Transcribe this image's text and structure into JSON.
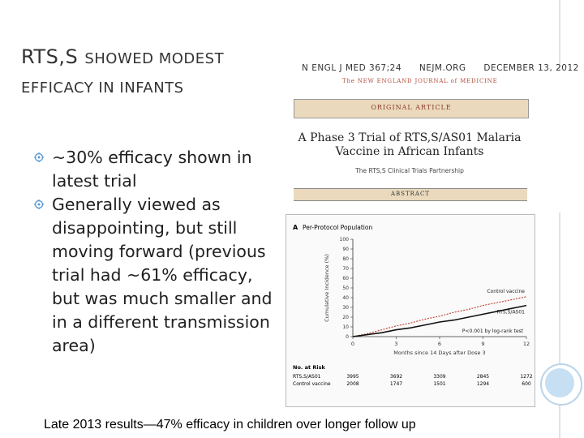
{
  "slide": {
    "title_line1_first": "RTS,S",
    "title_line1_rest": "SHOWED MODEST",
    "title_line2": "EFFICACY IN INFANTS",
    "bullets": [
      "~30% efficacy shown in latest trial",
      "Generally viewed as disappointing, but still moving forward (previous trial had ~61% efficacy, but was much smaller and in a different transmission area)"
    ],
    "caption": "Late 2013 results—47% efficacy in children over longer follow up"
  },
  "article": {
    "journal_ref": "N ENGL J MED 367;24",
    "site": "NEJM.ORG",
    "date": "DECEMBER 13, 2012",
    "journal_name": "The NEW ENGLAND JOURNAL of MEDICINE",
    "section": "ORIGINAL ARTICLE",
    "title": "A Phase 3 Trial of RTS,S/AS01 Malaria Vaccine in African Infants",
    "authors": "The RTS,S Clinical Trials Partnership",
    "abstract_label": "ABSTRACT"
  },
  "colors": {
    "control_line": "#c0392b",
    "vaccine_line": "#111111",
    "bullet_icon": "#5b9bd5"
  },
  "chart_data": {
    "type": "line",
    "panel_label": "A",
    "title": "Per-Protocol Population",
    "xlabel": "Months since 14 Days after Dose 3",
    "ylabel": "Cumulative Incidence (%)",
    "xlim": [
      0,
      12
    ],
    "ylim": [
      0,
      100
    ],
    "x_ticks": [
      0,
      3,
      6,
      9,
      12
    ],
    "y_ticks": [
      0,
      10,
      20,
      30,
      40,
      50,
      60,
      70,
      80,
      90,
      100
    ],
    "series": [
      {
        "name": "Control vaccine",
        "x": [
          0,
          1,
          2,
          3,
          4,
          5,
          6,
          7,
          8,
          9,
          10,
          11,
          12
        ],
        "values": [
          0,
          3,
          7,
          11,
          14,
          18,
          21,
          25,
          28,
          32,
          35,
          38,
          41
        ]
      },
      {
        "name": "RTS,S/AS01",
        "x": [
          0,
          1,
          2,
          3,
          4,
          5,
          6,
          7,
          8,
          9,
          10,
          11,
          12
        ],
        "values": [
          0,
          2,
          4,
          7,
          9,
          12,
          15,
          17,
          20,
          23,
          26,
          29,
          32
        ]
      }
    ],
    "annotation": "P<0.001 by log-rank test",
    "at_risk": {
      "label": "No. at Risk",
      "rows": [
        {
          "name": "RTS,S/AS01",
          "values": [
            3995,
            3692,
            3309,
            2845,
            1272
          ]
        },
        {
          "name": "Control vaccine",
          "values": [
            2008,
            1747,
            1501,
            1294,
            600
          ]
        }
      ]
    }
  }
}
